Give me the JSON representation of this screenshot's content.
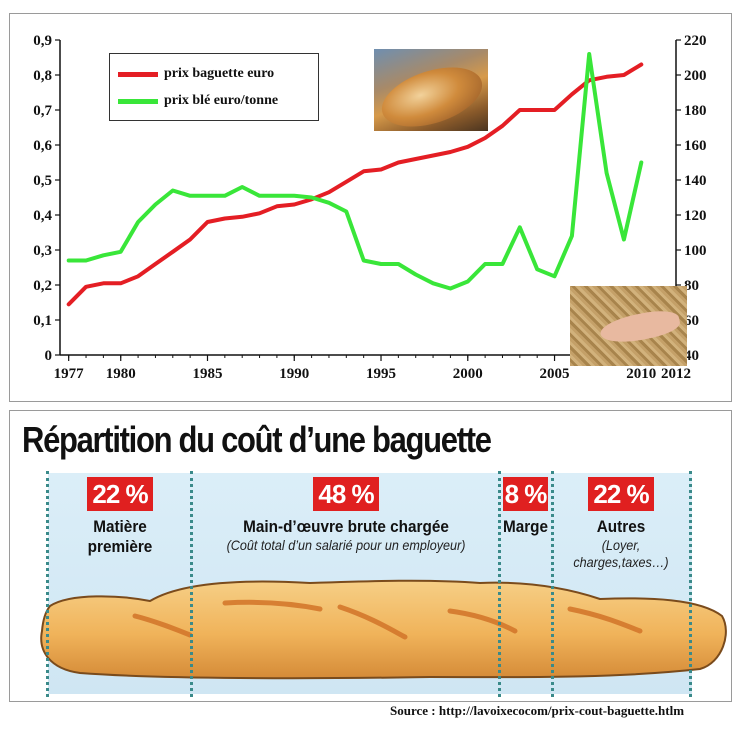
{
  "chart_data": {
    "type": "line",
    "x_ticks": [
      "1977",
      "1980",
      "1985",
      "1990",
      "1995",
      "2000",
      "2005",
      "2010",
      "2012"
    ],
    "y_left": {
      "ticks": [
        "0",
        "0,1",
        "0,2",
        "0,3",
        "0,4",
        "0,5",
        "0,6",
        "0,7",
        "0,8",
        "0,9"
      ],
      "lim": [
        0,
        0.9
      ]
    },
    "y_right": {
      "ticks": [
        "40",
        "60",
        "80",
        "100",
        "120",
        "140",
        "160",
        "180",
        "200",
        "220"
      ],
      "lim": [
        40,
        220
      ]
    },
    "xlim": [
      1976.5,
      2012
    ],
    "legend_position": "top-left",
    "series": [
      {
        "name": "prix baguette euro",
        "color": "#e41e24",
        "axis": "left",
        "x": [
          1977,
          1978,
          1979,
          1980,
          1981,
          1982,
          1983,
          1984,
          1985,
          1986,
          1987,
          1988,
          1989,
          1990,
          1991,
          1992,
          1993,
          1994,
          1995,
          1996,
          1997,
          1998,
          1999,
          2000,
          2001,
          2002,
          2003,
          2004,
          2005,
          2006,
          2007,
          2008,
          2009,
          2010
        ],
        "y": [
          0.145,
          0.195,
          0.205,
          0.205,
          0.225,
          0.26,
          0.295,
          0.33,
          0.38,
          0.39,
          0.395,
          0.405,
          0.425,
          0.43,
          0.445,
          0.465,
          0.495,
          0.525,
          0.53,
          0.55,
          0.56,
          0.57,
          0.58,
          0.595,
          0.62,
          0.655,
          0.7,
          0.7,
          0.7,
          0.745,
          0.785,
          0.795,
          0.8,
          0.83
        ]
      },
      {
        "name": "prix blé euro/tonne",
        "color": "#39e639",
        "axis": "right",
        "x": [
          1977,
          1978,
          1979,
          1980,
          1981,
          1982,
          1983,
          1984,
          1985,
          1986,
          1987,
          1988,
          1989,
          1990,
          1991,
          1992,
          1993,
          1994,
          1995,
          1996,
          1997,
          1998,
          1999,
          2000,
          2001,
          2002,
          2003,
          2004,
          2005,
          2006,
          2007,
          2008,
          2009,
          2010
        ],
        "y": [
          94,
          94,
          97,
          99,
          116,
          126,
          134,
          131,
          131,
          131,
          136,
          131,
          131,
          131,
          130,
          127,
          122,
          94,
          92,
          92,
          86,
          81,
          78,
          82,
          92,
          92,
          113,
          89,
          85,
          108,
          212,
          144,
          106,
          150
        ]
      }
    ]
  },
  "cost_breakdown": {
    "title": "Répartition du coût d’une baguette",
    "segments": [
      {
        "pct": "22 %",
        "label_lines": [
          "Matière",
          "première"
        ],
        "note_lines": []
      },
      {
        "pct": "48 %",
        "label_lines": [
          "Main-d’œuvre brute chargée"
        ],
        "note_lines": [
          "(Coût total d’un salarié pour un employeur)"
        ]
      },
      {
        "pct": "8 %",
        "label_lines": [
          "Marge"
        ],
        "note_lines": []
      },
      {
        "pct": "22 %",
        "label_lines": [
          "Autres"
        ],
        "note_lines": [
          "(Loyer,",
          "charges,taxes…)"
        ]
      }
    ]
  },
  "source": "Source : http://lavoixecocom/prix-cout-baguette.htlm"
}
